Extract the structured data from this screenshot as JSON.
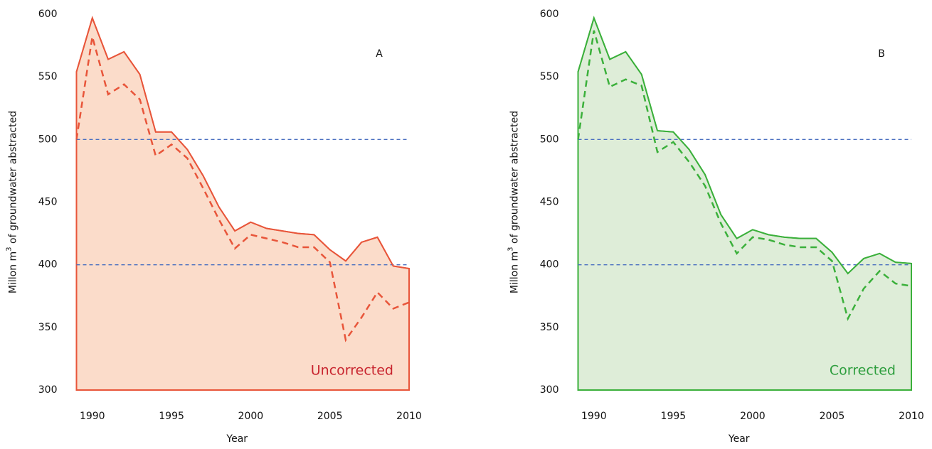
{
  "chart_data": [
    {
      "type": "area",
      "panel_label": "A",
      "annotation": "Uncorrected",
      "annotation_color": "#c8242e",
      "xlabel": "Year",
      "ylabel": [
        "Millon m",
        "3",
        " of groundwater abstracted"
      ],
      "x": [
        1989,
        1990,
        1991,
        1992,
        1993,
        1994,
        1995,
        1996,
        1997,
        1998,
        1999,
        2000,
        2001,
        2002,
        2003,
        2004,
        2005,
        2006,
        2007,
        2008,
        2009,
        2010
      ],
      "fill_color": "#fbdcca",
      "series": [
        {
          "color": "#e8553a",
          "style": "solid",
          "values": [
            554,
            597,
            564,
            570,
            552,
            506,
            506,
            492,
            471,
            446,
            427,
            434,
            429,
            427,
            425,
            424,
            412,
            403,
            418,
            422,
            399,
            397
          ]
        },
        {
          "color": "#e8553a",
          "style": "dashed",
          "values": [
            500,
            582,
            536,
            544,
            532,
            487,
            496,
            485,
            461,
            436,
            413,
            424,
            421,
            418,
            414,
            414,
            402,
            340,
            358,
            378,
            365,
            370
          ]
        }
      ],
      "hlines": [
        500,
        400
      ],
      "hline_color": "#4a6fc0",
      "xlim": [
        1989,
        2010
      ],
      "xticks": [
        1990,
        1995,
        2000,
        2005,
        2010
      ],
      "ylim": [
        300,
        600
      ],
      "yticks": [
        300,
        350,
        400,
        450,
        500,
        550,
        600
      ]
    },
    {
      "type": "area",
      "panel_label": "B",
      "annotation": "Corrected",
      "annotation_color": "#2e9e3e",
      "xlabel": "Year",
      "ylabel": [
        "Millon m",
        "3",
        " of groundwater abstracted"
      ],
      "x": [
        1989,
        1990,
        1991,
        1992,
        1993,
        1994,
        1995,
        1996,
        1997,
        1998,
        1999,
        2000,
        2001,
        2002,
        2003,
        2004,
        2005,
        2006,
        2007,
        2008,
        2009,
        2010
      ],
      "fill_color": "#deedd8",
      "series": [
        {
          "color": "#3bb03b",
          "style": "solid",
          "values": [
            554,
            597,
            564,
            570,
            552,
            507,
            506,
            492,
            472,
            440,
            421,
            428,
            424,
            422,
            421,
            421,
            410,
            393,
            405,
            409,
            402,
            401
          ]
        },
        {
          "color": "#3bb03b",
          "style": "dashed",
          "values": [
            500,
            587,
            542,
            548,
            543,
            490,
            498,
            482,
            463,
            433,
            409,
            422,
            420,
            416,
            414,
            414,
            403,
            357,
            381,
            395,
            385,
            383
          ]
        }
      ],
      "hlines": [
        500,
        400
      ],
      "hline_color": "#4a6fc0",
      "xlim": [
        1989,
        2010
      ],
      "xticks": [
        1990,
        1995,
        2000,
        2005,
        2010
      ],
      "ylim": [
        300,
        600
      ],
      "yticks": [
        300,
        350,
        400,
        450,
        500,
        550,
        600
      ]
    }
  ]
}
